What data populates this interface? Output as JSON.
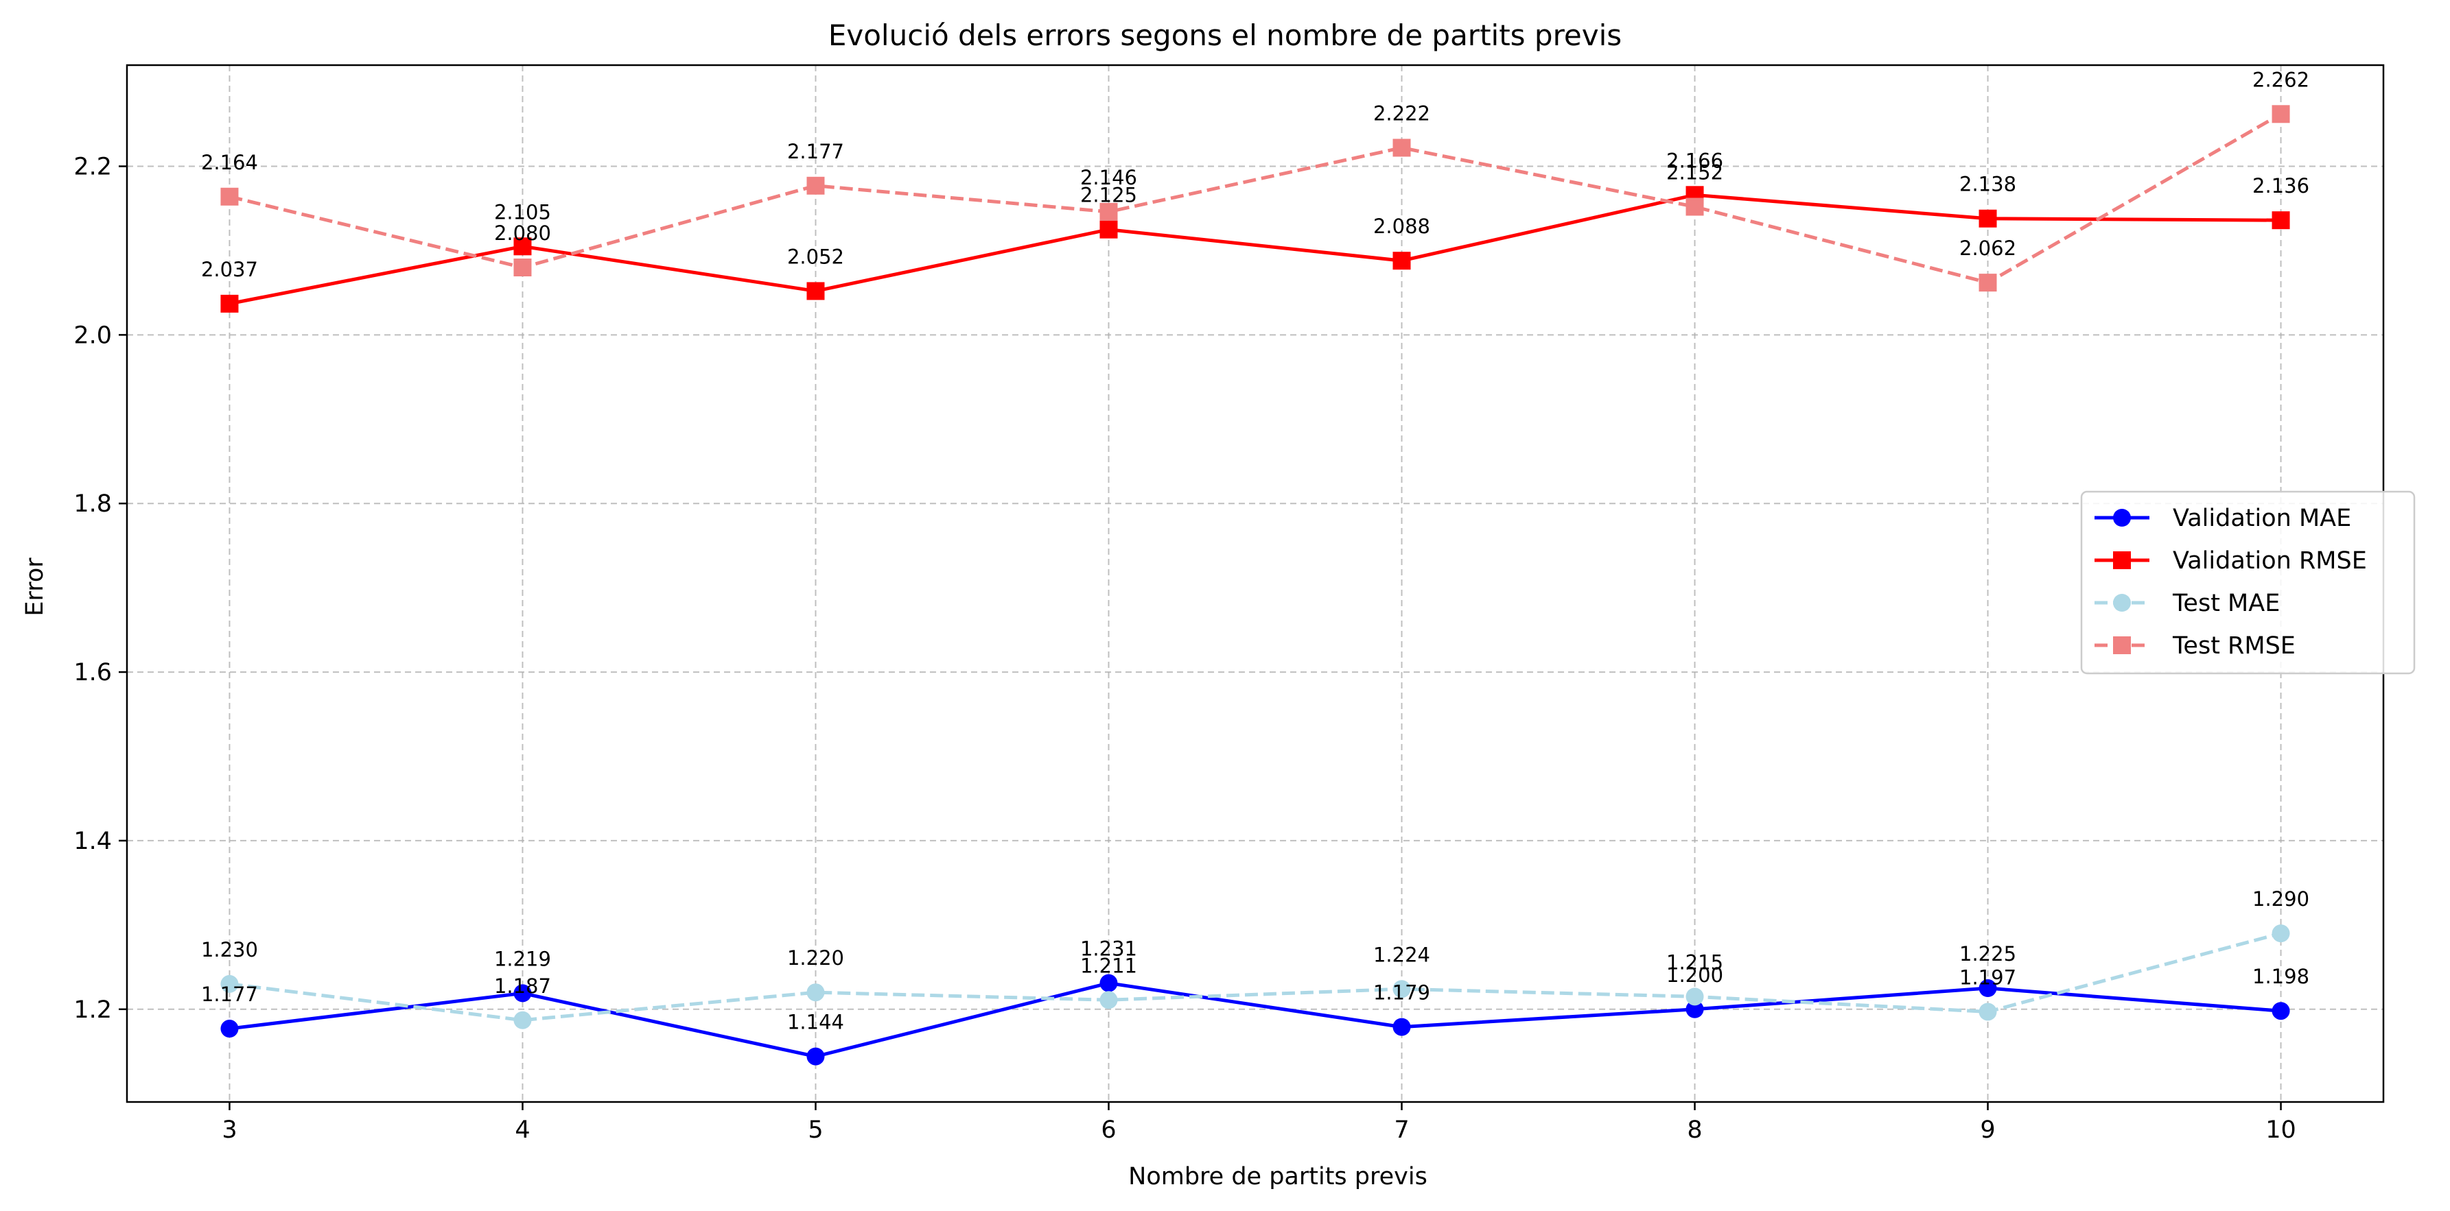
{
  "chart_data": {
    "type": "line",
    "title": "Evolució dels errors segons el nombre de partits previs",
    "xlabel": "Nombre de partits previs",
    "ylabel": "Error",
    "x": [
      3,
      4,
      5,
      6,
      7,
      8,
      9,
      10
    ],
    "x_ticks": [
      "3",
      "4",
      "5",
      "6",
      "7",
      "8",
      "9",
      "10"
    ],
    "y_ticks": [
      "1.2",
      "1.4",
      "1.6",
      "1.8",
      "2.0",
      "2.2"
    ],
    "ylim": [
      1.09,
      2.32
    ],
    "xlim": [
      2.65,
      10.35
    ],
    "grid": true,
    "legend_position": "center-right",
    "series": [
      {
        "name": "Validation MAE",
        "values": [
          1.177,
          1.219,
          1.144,
          1.231,
          1.179,
          1.2,
          1.225,
          1.198
        ],
        "labels": [
          "1.177",
          "1.219",
          "1.144",
          "1.231",
          "1.179",
          "1.200",
          "1.225",
          "1.198"
        ],
        "color": "#0000ff",
        "linestyle": "solid",
        "marker": "circle"
      },
      {
        "name": "Validation RMSE",
        "values": [
          2.037,
          2.105,
          2.052,
          2.125,
          2.088,
          2.166,
          2.138,
          2.136
        ],
        "labels": [
          "2.037",
          "2.105",
          "2.052",
          "2.125",
          "2.088",
          "2.166",
          "2.138",
          "2.136"
        ],
        "color": "#ff0000",
        "linestyle": "solid",
        "marker": "square"
      },
      {
        "name": "Test MAE",
        "values": [
          1.23,
          1.187,
          1.22,
          1.211,
          1.224,
          1.215,
          1.197,
          1.29
        ],
        "labels": [
          "1.230",
          "1.187",
          "1.220",
          "1.211",
          "1.224",
          "1.215",
          "1.197",
          "1.290"
        ],
        "color": "#add8e6",
        "linestyle": "dashed",
        "marker": "circle"
      },
      {
        "name": "Test RMSE",
        "values": [
          2.164,
          2.08,
          2.177,
          2.146,
          2.222,
          2.152,
          2.062,
          2.262
        ],
        "labels": [
          "2.164",
          "2.080",
          "2.177",
          "2.146",
          "2.222",
          "2.152",
          "2.062",
          "2.262"
        ],
        "color": "#f08080",
        "linestyle": "dashed",
        "marker": "square"
      }
    ]
  }
}
